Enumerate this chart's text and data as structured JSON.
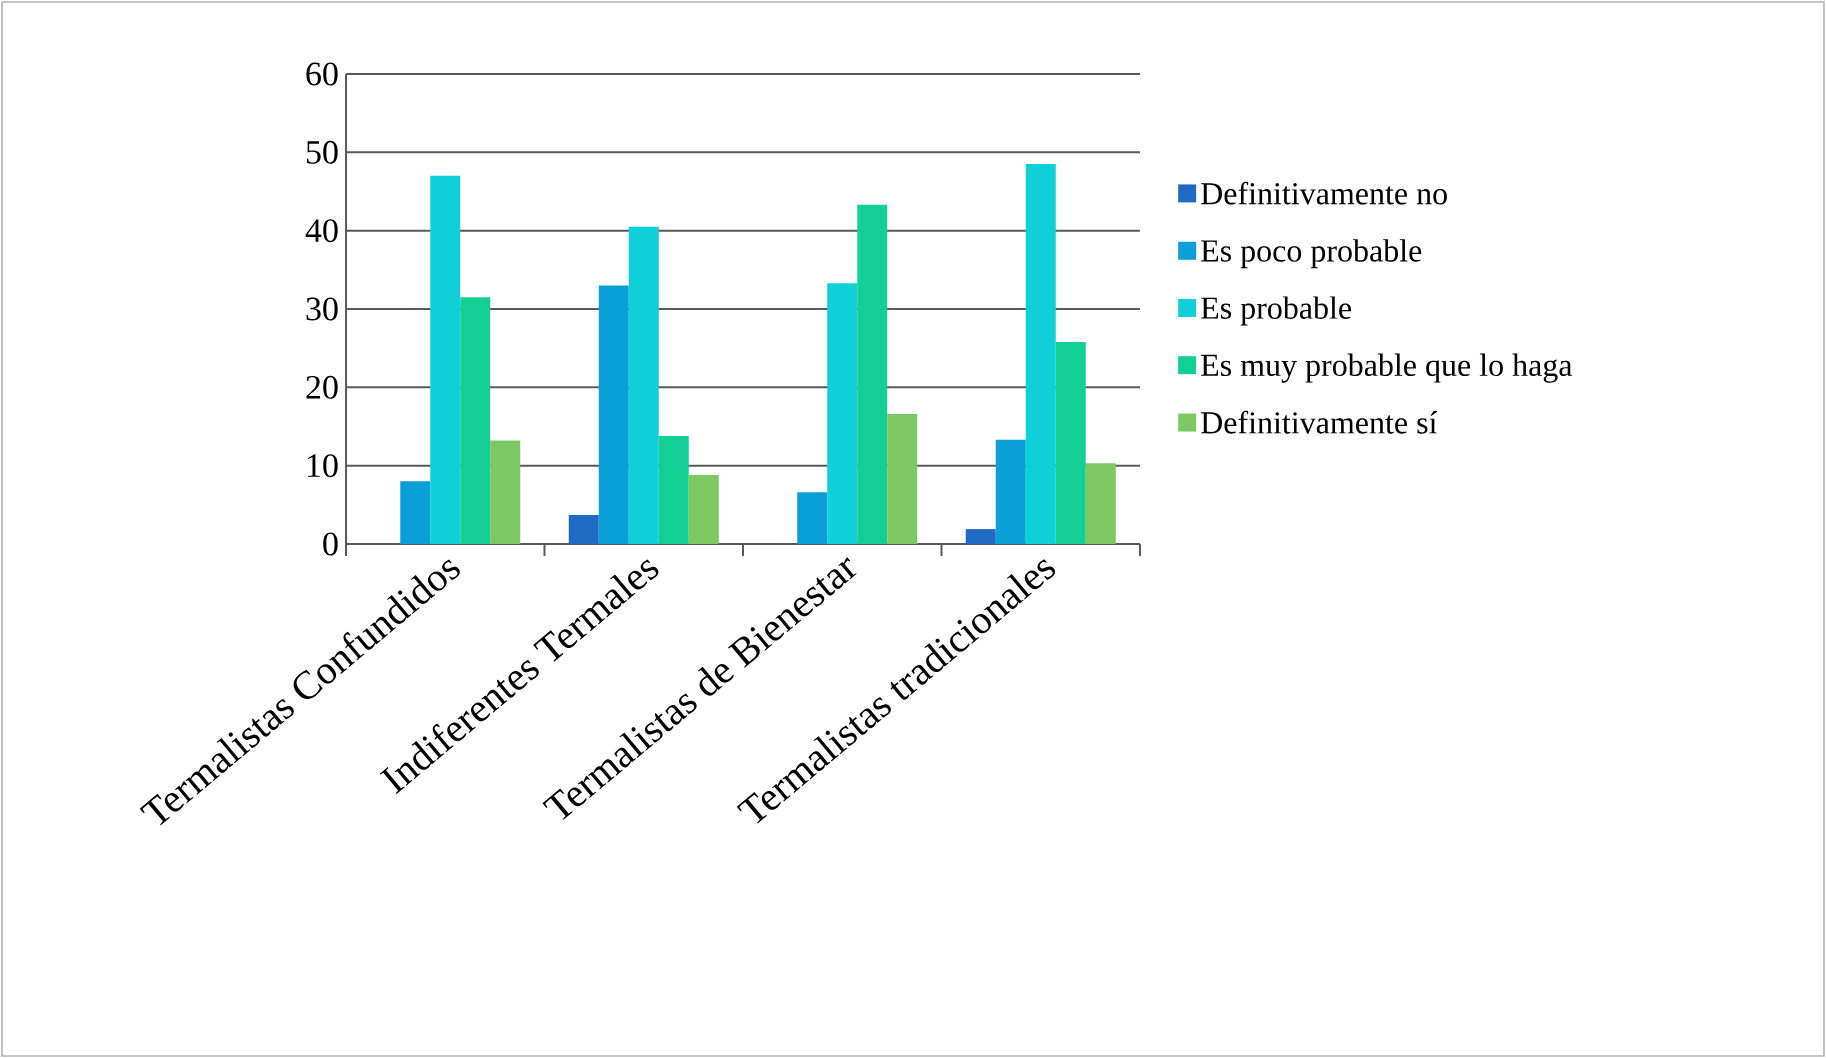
{
  "chart_data": {
    "type": "bar",
    "categories": [
      "Termalistas Confundidos",
      "Indiferentes Termales",
      "Termalistas de Bienestar",
      "Termalistas tradicionales"
    ],
    "series": [
      {
        "name": "Definitivamente no",
        "color": "#1f6bc4",
        "values": [
          0,
          3.7,
          0,
          1.9
        ]
      },
      {
        "name": "Es poco probable",
        "color": "#0a9fd6",
        "values": [
          8,
          33,
          6.6,
          13.3
        ]
      },
      {
        "name": "Es probable",
        "color": "#0fd0d8",
        "values": [
          47,
          40.5,
          33.3,
          48.5
        ]
      },
      {
        "name": "Es muy probable que lo haga",
        "color": "#13cf95",
        "values": [
          31.5,
          13.8,
          43.3,
          25.8
        ]
      },
      {
        "name": "Definitivamente sí",
        "color": "#7cc964",
        "values": [
          13.2,
          8.8,
          16.6,
          10.3
        ]
      }
    ],
    "ylim": [
      0,
      60
    ],
    "yticks": [
      0,
      10,
      20,
      30,
      40,
      50,
      60
    ],
    "grid": "y",
    "legend": "right"
  }
}
